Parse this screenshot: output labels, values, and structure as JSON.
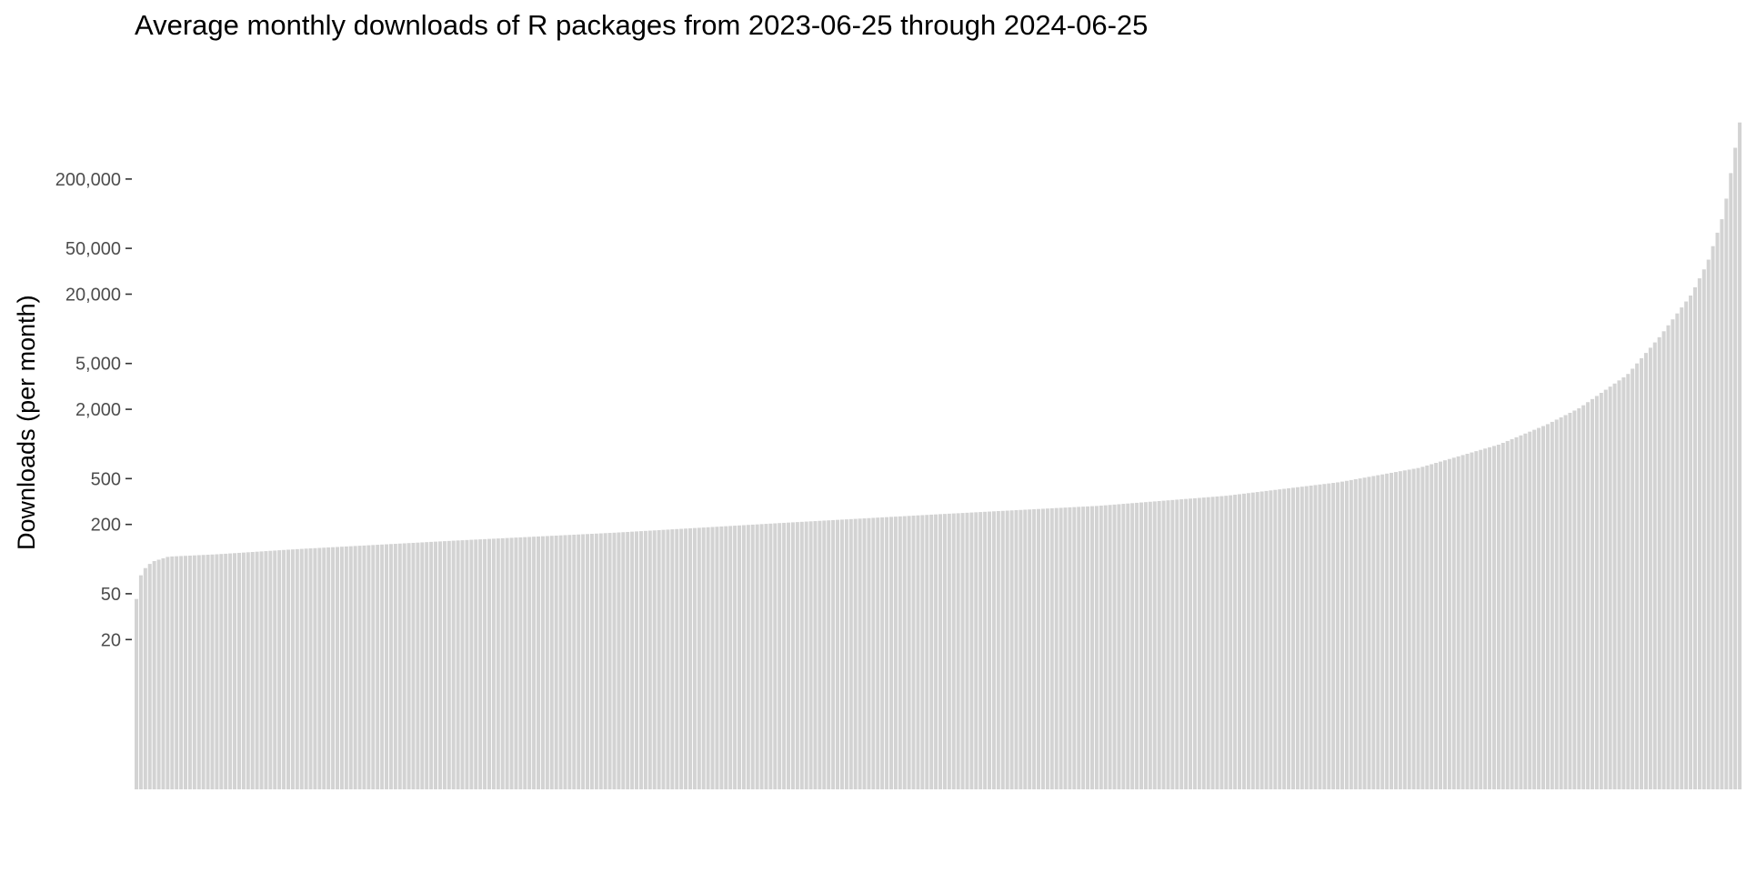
{
  "chart_data": {
    "type": "bar",
    "title": "Average monthly downloads of R packages from 2023-06-25 through 2024-06-25",
    "xlabel": "",
    "ylabel": "Downloads (per month)",
    "y_scale": "log10",
    "ylim": [
      1,
      700000
    ],
    "y_ticks": [
      20,
      50,
      200,
      500,
      2000,
      5000,
      20000,
      50000,
      200000
    ],
    "y_tick_labels": [
      "20",
      "50",
      "200",
      "500",
      "2,000",
      "5,000",
      "20,000",
      "50,000",
      "200,000"
    ],
    "n_bars": 360,
    "sorted": "ascending",
    "quantile_curve": [
      [
        0.0,
        45
      ],
      [
        0.003,
        75
      ],
      [
        0.006,
        85
      ],
      [
        0.01,
        95
      ],
      [
        0.02,
        105
      ],
      [
        0.05,
        110
      ],
      [
        0.1,
        122
      ],
      [
        0.2,
        145
      ],
      [
        0.3,
        170
      ],
      [
        0.4,
        205
      ],
      [
        0.5,
        245
      ],
      [
        0.6,
        290
      ],
      [
        0.68,
        355
      ],
      [
        0.75,
        465
      ],
      [
        0.8,
        620
      ],
      [
        0.85,
        990
      ],
      [
        0.88,
        1480
      ],
      [
        0.9,
        2050
      ],
      [
        0.93,
        4000
      ],
      [
        0.95,
        8500
      ],
      [
        0.97,
        20000
      ],
      [
        0.98,
        38000
      ],
      [
        0.99,
        100000
      ],
      [
        0.995,
        250000
      ],
      [
        1.0,
        620000
      ]
    ],
    "grid": false,
    "legend": "none",
    "bar_color": "#d3d3d3"
  }
}
